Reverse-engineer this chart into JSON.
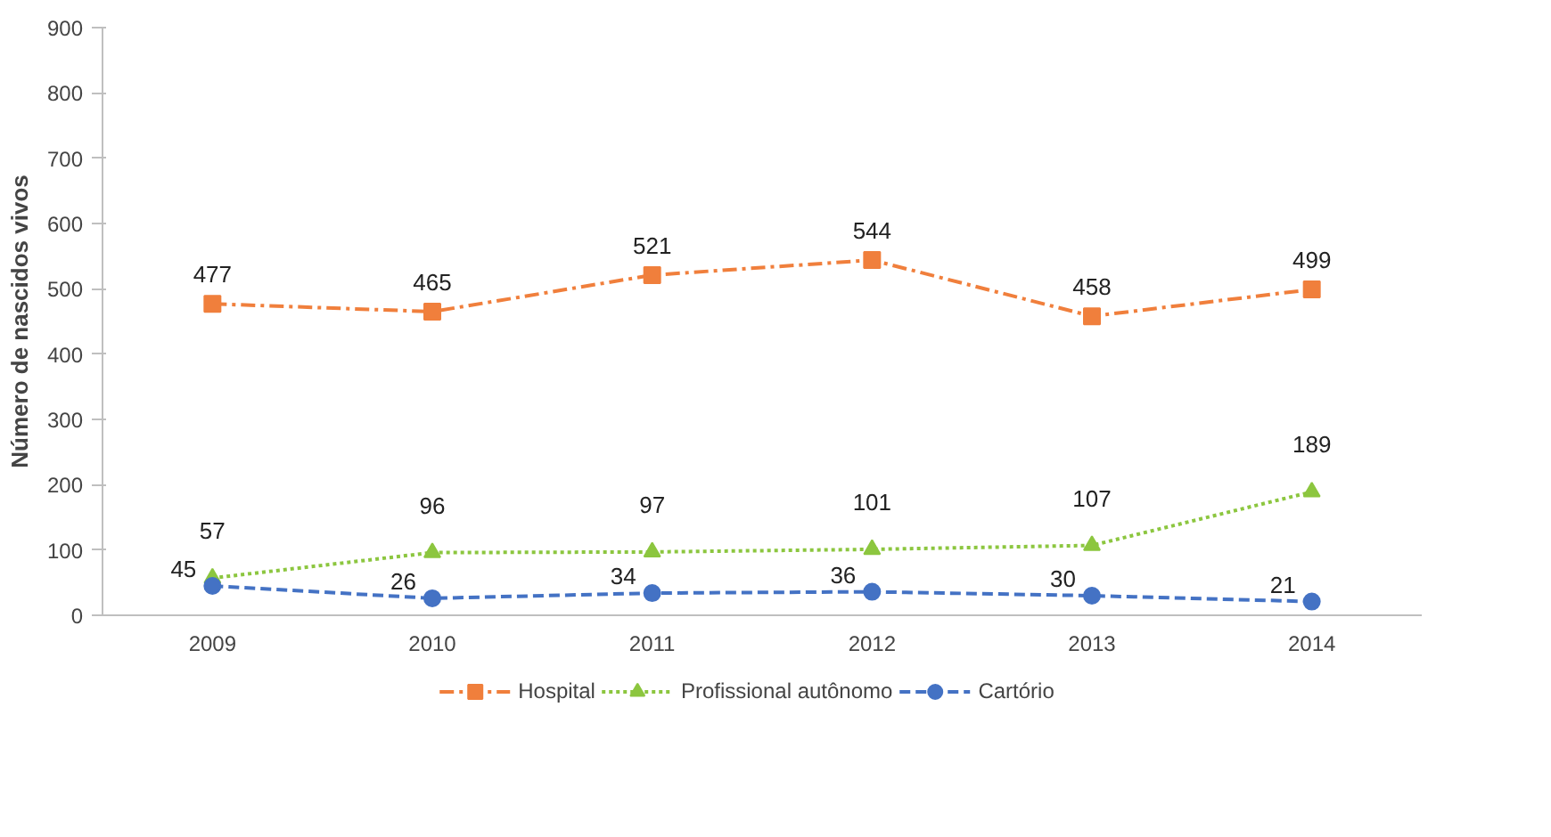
{
  "chart_data": {
    "type": "line",
    "ylabel": "Número de nascidos vivos",
    "categories": [
      "2009",
      "2010",
      "2011",
      "2012",
      "2013",
      "2014"
    ],
    "series": [
      {
        "name": "Hospital",
        "color": "#f07f3c",
        "values": [
          477,
          465,
          521,
          544,
          458,
          499
        ],
        "marker": "square",
        "line_style": "dashdot"
      },
      {
        "name": "Profissional autônomo",
        "color": "#8cc63f",
        "values": [
          57,
          96,
          97,
          101,
          107,
          189
        ],
        "marker": "triangle",
        "line_style": "dotted"
      },
      {
        "name": "Cartório",
        "color": "#4472c4",
        "values": [
          45,
          26,
          34,
          36,
          30,
          21
        ],
        "marker": "circle",
        "line_style": "dashed"
      }
    ],
    "ylim": [
      0,
      900
    ],
    "yticks": [
      0,
      100,
      200,
      300,
      400,
      500,
      600,
      700,
      800,
      900
    ],
    "grid": false,
    "legend": "bottom",
    "data_labels": true
  }
}
